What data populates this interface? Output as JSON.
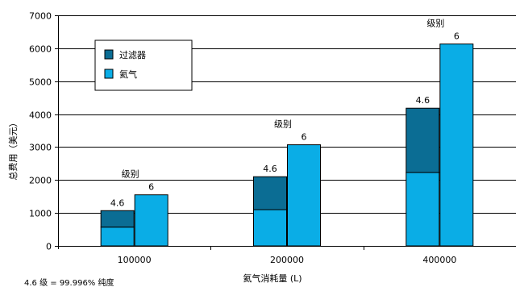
{
  "chart_data": {
    "type": "bar",
    "stacked": true,
    "xlabel": "氦气消耗量 (L)",
    "ylabel": "总费用（美元）",
    "ylim": [
      0,
      7000
    ],
    "yticks": [
      0,
      1000,
      2000,
      3000,
      4000,
      5000,
      6000,
      7000
    ],
    "grid": "horizontal",
    "legend_position": "top-left",
    "categories": [
      "100000",
      "200000",
      "400000"
    ],
    "group_label": "级别",
    "bars": [
      {
        "category": "100000",
        "stacked": {
          "label": "4.6",
          "segments": [
            {
              "series": "氦气",
              "value": 570
            },
            {
              "series": "过滤器",
              "value": 500
            }
          ]
        },
        "single": {
          "label": "6",
          "series": "氦气",
          "value": 1550
        }
      },
      {
        "category": "200000",
        "stacked": {
          "label": "4.6",
          "segments": [
            {
              "series": "氦气",
              "value": 1100
            },
            {
              "series": "过滤器",
              "value": 1000
            }
          ]
        },
        "single": {
          "label": "6",
          "series": "氦气",
          "value": 3070
        }
      },
      {
        "category": "400000",
        "stacked": {
          "label": "4.6",
          "segments": [
            {
              "series": "氦气",
              "value": 2230
            },
            {
              "series": "过滤器",
              "value": 1950
            }
          ]
        },
        "single": {
          "label": "6",
          "series": "氦气",
          "value": 6130
        }
      }
    ],
    "series": [
      {
        "name": "过滤器",
        "color": "#0b6d94"
      },
      {
        "name": "氦气",
        "color": "#0aade6"
      }
    ],
    "footnote": "4.6 级 = 99.996% 纯度"
  }
}
